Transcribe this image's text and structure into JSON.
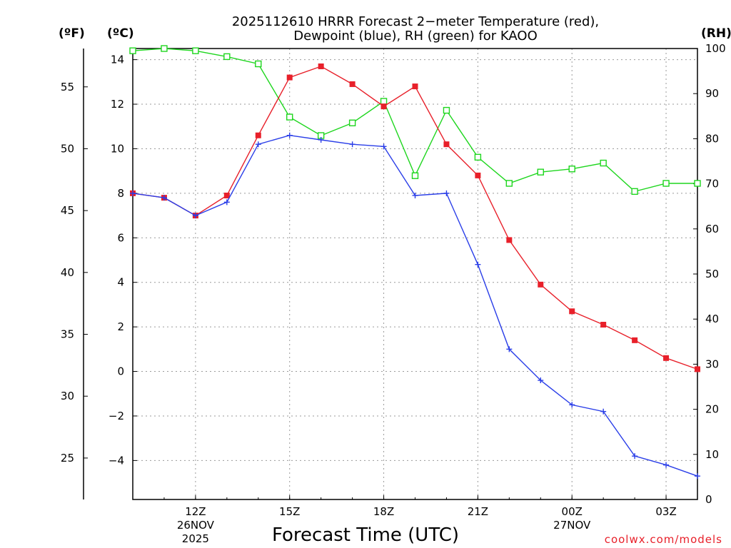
{
  "header": {
    "title_line1": "2025112610 HRRR Forecast 2−meter Temperature (red),",
    "title_line2": "Dewpoint (blue), RH (green) for KAOO"
  },
  "units": {
    "fahrenheit": "(ºF)",
    "celsius": "(ºC)",
    "rh": "(RH)"
  },
  "footer": {
    "credit": "coolwx.com/models"
  },
  "chart_data": {
    "type": "line",
    "title": "2025112610 HRRR Forecast 2−meter Temperature (red), Dewpoint (blue), RH (green) for KAOO",
    "xlabel": "Forecast Time (UTC)",
    "x": [
      10,
      11,
      12,
      13,
      14,
      15,
      16,
      17,
      18,
      19,
      20,
      21,
      22,
      23,
      24,
      25,
      26,
      27,
      28
    ],
    "xlim": [
      10,
      28
    ],
    "x_ticks": [
      {
        "x": 12,
        "label": "12Z",
        "sub1": "26NOV",
        "sub2": "2025"
      },
      {
        "x": 15,
        "label": "15Z",
        "sub1": "",
        "sub2": ""
      },
      {
        "x": 18,
        "label": "18Z",
        "sub1": "",
        "sub2": ""
      },
      {
        "x": 21,
        "label": "21Z",
        "sub1": "",
        "sub2": ""
      },
      {
        "x": 24,
        "label": "00Z",
        "sub1": "27NOV",
        "sub2": ""
      },
      {
        "x": 27,
        "label": "03Z",
        "sub1": "",
        "sub2": ""
      }
    ],
    "y_left_celsius": {
      "label": "(ºC)",
      "ylim": [
        -5.75,
        14.5
      ],
      "ticks": [
        "14",
        "12",
        "10",
        "8",
        "6",
        "4",
        "2",
        "0",
        "−2",
        "−4"
      ],
      "tick_values": [
        14,
        12,
        10,
        8,
        6,
        4,
        2,
        0,
        -2,
        -4
      ]
    },
    "y_far_left_fahrenheit": {
      "label": "(ºF)",
      "ticks": [
        "55",
        "50",
        "45",
        "40",
        "35",
        "30",
        "25"
      ],
      "tick_values": [
        55,
        50,
        45,
        40,
        35,
        30,
        25
      ]
    },
    "y_right_rh": {
      "label": "(RH)",
      "ylim": [
        0,
        100
      ],
      "ticks": [
        "100",
        "90",
        "80",
        "70",
        "60",
        "50",
        "40",
        "30",
        "20",
        "10",
        "0"
      ],
      "tick_values": [
        100,
        90,
        80,
        70,
        60,
        50,
        40,
        30,
        20,
        10,
        0
      ]
    },
    "grid": true,
    "series": [
      {
        "name": "Temperature",
        "axis": "celsius",
        "color": "#e8202a",
        "marker": "filled-square",
        "values": [
          8.0,
          7.8,
          7.0,
          7.9,
          10.6,
          13.2,
          13.7,
          12.9,
          11.9,
          12.8,
          10.2,
          8.8,
          5.9,
          3.9,
          2.7,
          2.1,
          1.4,
          0.6,
          0.1
        ]
      },
      {
        "name": "Dewpoint",
        "axis": "celsius",
        "color": "#2a3ee8",
        "marker": "plus",
        "values": [
          8.0,
          7.8,
          7.0,
          7.6,
          10.2,
          10.6,
          10.4,
          10.2,
          10.1,
          7.9,
          8.0,
          4.8,
          1.0,
          -0.4,
          -1.5,
          -1.8,
          -3.8,
          -4.2,
          -4.7
        ]
      },
      {
        "name": "RH",
        "axis": "rh",
        "color": "#1ed61e",
        "marker": "open-square",
        "values": [
          99.5,
          100,
          99.5,
          98.2,
          96.6,
          84.8,
          80.7,
          83.5,
          88.3,
          71.8,
          86.3,
          75.9,
          70.1,
          72.6,
          73.3,
          74.6,
          68.3,
          70.1,
          70.1
        ]
      }
    ]
  }
}
